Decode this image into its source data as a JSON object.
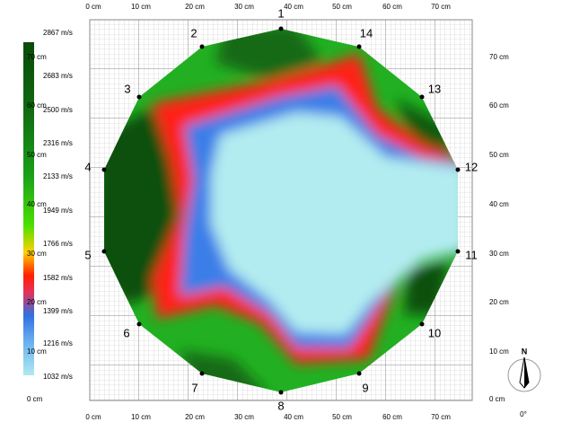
{
  "axes": {
    "top_ticks": [
      "0 cm",
      "10 cm",
      "20 cm",
      "30 cm",
      "40 cm",
      "50 cm",
      "60 cm",
      "70 cm"
    ],
    "bottom_ticks": [
      "0 cm",
      "10 cm",
      "20 cm",
      "30 cm",
      "40 cm",
      "50 cm",
      "60 cm",
      "70 cm"
    ],
    "right_ticks": [
      "70 cm",
      "60 cm",
      "50 cm",
      "40 cm",
      "30 cm",
      "20 cm",
      "10 cm",
      "0 cm"
    ],
    "left_ticks": [
      "70 cm",
      "60 cm",
      "50 cm",
      "40 cm",
      "30 cm",
      "20 cm",
      "10 cm",
      "0 cm"
    ]
  },
  "color_scale": {
    "labels": [
      "2867 m/s",
      "2683 m/s",
      "2500 m/s",
      "2316 m/s",
      "2133 m/s",
      "1949 m/s",
      "1766 m/s",
      "1582 m/s",
      "1399 m/s",
      "1216 m/s",
      "1032 m/s"
    ]
  },
  "sensors": [
    "1",
    "2",
    "3",
    "4",
    "5",
    "6",
    "7",
    "8",
    "9",
    "10",
    "11",
    "12",
    "13",
    "14"
  ],
  "compass": {
    "north": "N",
    "angle": "0°"
  }
}
